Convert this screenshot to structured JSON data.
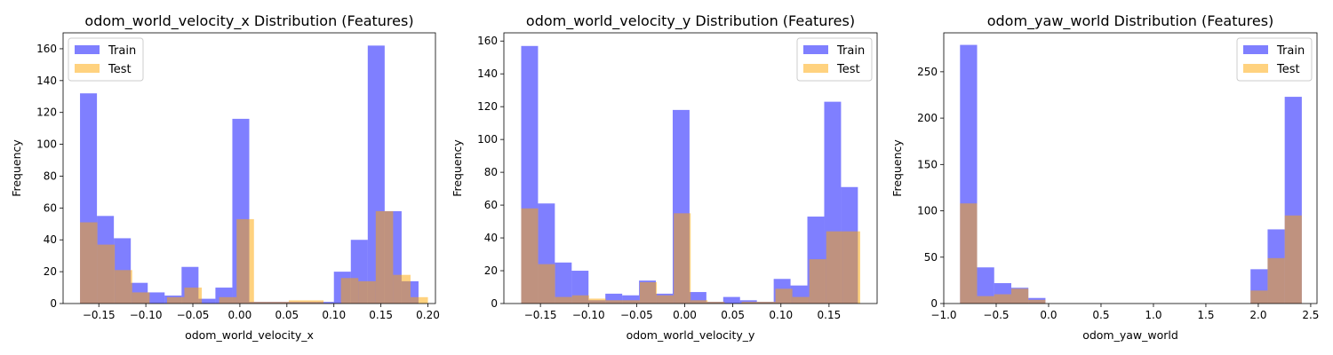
{
  "colors": {
    "train": "#0000ff",
    "test": "#ffa500",
    "axis": "#000000",
    "legend_border": "#cccccc"
  },
  "chart_data": [
    {
      "type": "bar",
      "title": "odom_world_velocity_x Distribution (Features)",
      "xlabel": "odom_world_velocity_x",
      "ylabel": "Frequency",
      "xlim": [
        -0.188,
        0.208
      ],
      "ylim": [
        0,
        170
      ],
      "xticks": [
        -0.15,
        -0.1,
        -0.05,
        0.0,
        0.05,
        0.1,
        0.15,
        0.2
      ],
      "xtick_labels": [
        "−0.15",
        "−0.10",
        "−0.05",
        "0.00",
        "0.05",
        "0.10",
        "0.15",
        "0.20"
      ],
      "yticks": [
        0,
        20,
        40,
        60,
        80,
        100,
        120,
        140,
        160
      ],
      "ytick_labels": [
        "0",
        "20",
        "40",
        "60",
        "80",
        "100",
        "120",
        "140",
        "160"
      ],
      "legend": "top-left",
      "series": [
        {
          "name": "Train",
          "bin_edges": [
            -0.17,
            -0.152,
            -0.134,
            -0.116,
            -0.098,
            -0.08,
            -0.062,
            -0.044,
            -0.026,
            -0.008,
            0.01,
            0.028,
            0.046,
            0.064,
            0.082,
            0.1,
            0.118,
            0.136,
            0.154,
            0.172,
            0.19
          ],
          "values": [
            132,
            55,
            41,
            13,
            7,
            5,
            23,
            3,
            10,
            116,
            1,
            1,
            1,
            1,
            1,
            20,
            40,
            162,
            58,
            14
          ]
        },
        {
          "name": "Test",
          "bin_edges": [
            -0.17,
            -0.1515,
            -0.133,
            -0.1145,
            -0.096,
            -0.0775,
            -0.059,
            -0.0405,
            -0.022,
            -0.0035,
            0.015,
            0.0335,
            0.052,
            0.0705,
            0.089,
            0.1075,
            0.126,
            0.1445,
            0.163,
            0.1815,
            0.2
          ],
          "values": [
            51,
            37,
            21,
            7,
            0,
            4,
            10,
            0,
            4,
            53,
            1,
            1,
            2,
            2,
            0,
            16,
            14,
            58,
            18,
            4
          ]
        }
      ]
    },
    {
      "type": "bar",
      "title": "odom_world_velocity_y Distribution (Features)",
      "xlabel": "odom_world_velocity_y",
      "ylabel": "Frequency",
      "xlim": [
        -0.188,
        0.2
      ],
      "ylim": [
        0,
        165
      ],
      "xticks": [
        -0.15,
        -0.1,
        -0.05,
        0.0,
        0.05,
        0.1,
        0.15
      ],
      "xtick_labels": [
        "−0.15",
        "−0.10",
        "−0.05",
        "0.00",
        "0.05",
        "0.10",
        "0.15"
      ],
      "yticks": [
        0,
        20,
        40,
        60,
        80,
        100,
        120,
        140,
        160
      ],
      "ytick_labels": [
        "0",
        "20",
        "40",
        "60",
        "80",
        "100",
        "120",
        "140",
        "160"
      ],
      "legend": "top-right",
      "series": [
        {
          "name": "Train",
          "bin_edges": [
            -0.17,
            -0.1525,
            -0.135,
            -0.1175,
            -0.1,
            -0.0825,
            -0.065,
            -0.0475,
            -0.03,
            -0.0125,
            0.005,
            0.0225,
            0.04,
            0.0575,
            0.075,
            0.0925,
            0.11,
            0.1275,
            0.145,
            0.1625,
            0.18
          ],
          "values": [
            157,
            61,
            25,
            20,
            2,
            6,
            5,
            14,
            6,
            118,
            7,
            1,
            4,
            2,
            1,
            15,
            11,
            53,
            123,
            71
          ]
        },
        {
          "name": "Test",
          "bin_edges": [
            -0.17,
            -0.1524,
            -0.1348,
            -0.1171,
            -0.0995,
            -0.0819,
            -0.0643,
            -0.0467,
            -0.029,
            -0.0114,
            0.0062,
            0.0238,
            0.0414,
            0.0591,
            0.0767,
            0.0943,
            0.1119,
            0.1295,
            0.1471,
            0.1648,
            0.1824
          ],
          "values": [
            58,
            24,
            4,
            5,
            3,
            2,
            2,
            13,
            5,
            55,
            2,
            1,
            0,
            1,
            1,
            9,
            4,
            27,
            44,
            44
          ]
        }
      ]
    },
    {
      "type": "bar",
      "title": "odom_yaw_world Distribution (Features)",
      "xlabel": "odom_yaw_world",
      "ylabel": "Frequency",
      "xlim": [
        -1.0,
        2.56
      ],
      "ylim": [
        0,
        292
      ],
      "xticks": [
        -1.0,
        -0.5,
        0.0,
        0.5,
        1.0,
        1.5,
        2.0,
        2.5
      ],
      "xtick_labels": [
        "−1.0",
        "−0.5",
        "0.0",
        "0.5",
        "1.0",
        "1.5",
        "2.0",
        "2.5"
      ],
      "yticks": [
        0,
        50,
        100,
        150,
        200,
        250
      ],
      "ytick_labels": [
        "0",
        "50",
        "100",
        "150",
        "200",
        "250"
      ],
      "legend": "top-right",
      "series": [
        {
          "name": "Train",
          "bin_edges": [
            -0.845,
            -0.682,
            -0.519,
            -0.356,
            -0.193,
            -0.03,
            0.133,
            0.296,
            0.459,
            0.622,
            0.785,
            0.948,
            1.111,
            1.274,
            1.437,
            1.6,
            1.763,
            1.926,
            2.089,
            2.252,
            2.415
          ],
          "values": [
            279,
            39,
            22,
            17,
            6,
            0,
            0,
            0,
            0,
            0,
            0,
            0,
            0,
            0,
            0,
            0,
            0,
            37,
            80,
            223
          ]
        },
        {
          "name": "Test",
          "bin_edges": [
            -0.845,
            -0.682,
            -0.519,
            -0.356,
            -0.193,
            -0.03,
            0.133,
            0.296,
            0.459,
            0.622,
            0.785,
            0.948,
            1.111,
            1.274,
            1.437,
            1.6,
            1.763,
            1.926,
            2.089,
            2.252,
            2.415
          ],
          "values": [
            108,
            8,
            10,
            16,
            4,
            0,
            0,
            0,
            0,
            0,
            0,
            0,
            0,
            0,
            0,
            0,
            0,
            14,
            49,
            95
          ]
        }
      ]
    }
  ]
}
